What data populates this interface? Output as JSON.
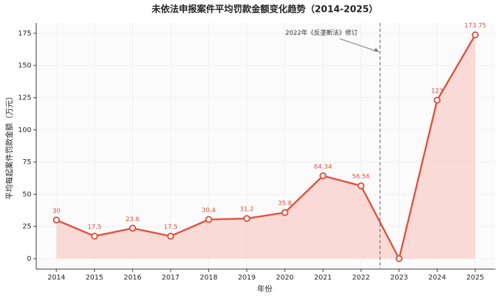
{
  "chart_data": {
    "type": "line",
    "title": "未依法申报案件平均罚款金额变化趋势（2014-2025）",
    "x_label": "年份",
    "y_label": "平均每起案件罚款金额（万元）",
    "x": [
      2014,
      2015,
      2016,
      2017,
      2018,
      2019,
      2020,
      2021,
      2022,
      2023,
      2024,
      2025
    ],
    "values": [
      30,
      17.5,
      23.6,
      17.5,
      30.4,
      31.2,
      35.8,
      64.34,
      56.56,
      0,
      123,
      173.75
    ],
    "value_labels": [
      "30",
      "17.5",
      "23.6",
      "17.5",
      "30.4",
      "31.2",
      "35.8",
      "64.34",
      "56.56",
      null,
      "123",
      "173.75"
    ],
    "color": "#e0513f",
    "fill_color": "#f8d3cf",
    "xlim": [
      2013.47,
      2025.53
    ],
    "ylim": [
      -8.1,
      183
    ],
    "xticks": [
      2014,
      2015,
      2016,
      2017,
      2018,
      2019,
      2020,
      2021,
      2022,
      2023,
      2024,
      2025
    ],
    "yticks": [
      0,
      25,
      50,
      75,
      100,
      125,
      150,
      175
    ],
    "grid": true,
    "vline_x": 2022.5,
    "annotation": {
      "text": "2022年《反垄断法》修订",
      "x": 2022.5,
      "y": 160
    }
  }
}
